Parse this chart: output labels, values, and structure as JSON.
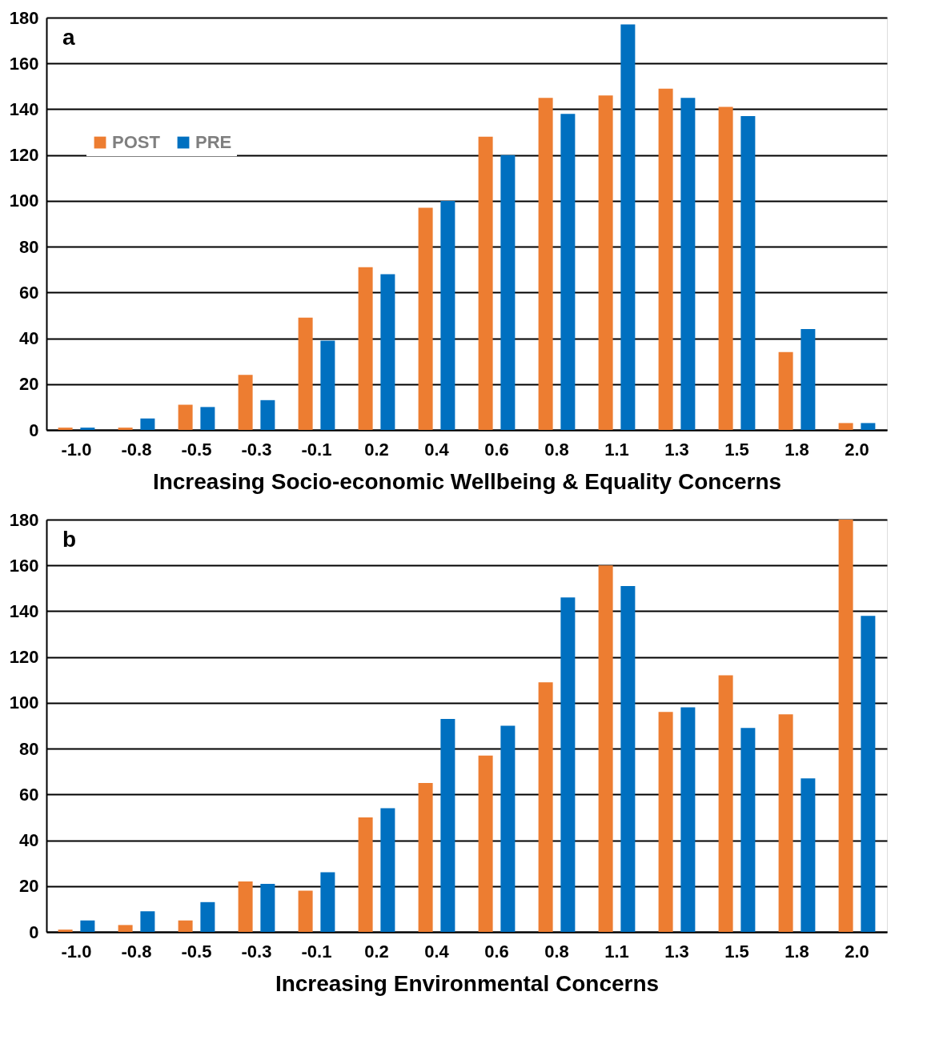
{
  "chart_data": [
    {
      "type": "bar",
      "xlabel": "Increasing Socio-economic Wellbeing & Equality Concerns",
      "annotations": [
        "a"
      ],
      "categories": [
        "-1.0",
        "-0.8",
        "-0.5",
        "-0.3",
        "-0.1",
        "0.2",
        "0.4",
        "0.6",
        "0.8",
        "1.1",
        "1.3",
        "1.5",
        "1.8",
        "2.0"
      ],
      "series": [
        {
          "name": "POST",
          "color": "#ed7d31",
          "values": [
            1,
            1,
            11,
            24,
            49,
            71,
            97,
            128,
            145,
            146,
            149,
            141,
            34,
            3
          ]
        },
        {
          "name": "PRE",
          "color": "#0070c0",
          "values": [
            1,
            5,
            10,
            13,
            39,
            68,
            100,
            120,
            138,
            177,
            145,
            137,
            44,
            3
          ]
        }
      ],
      "ylim": [
        0,
        180
      ],
      "yticks": [
        0,
        20,
        40,
        60,
        80,
        100,
        120,
        140,
        160,
        180
      ],
      "grid": "y",
      "legend": "left"
    },
    {
      "type": "bar",
      "xlabel": "Increasing Environmental Concerns",
      "annotations": [
        "b"
      ],
      "categories": [
        "-1.0",
        "-0.8",
        "-0.5",
        "-0.3",
        "-0.1",
        "0.2",
        "0.4",
        "0.6",
        "0.8",
        "1.1",
        "1.3",
        "1.5",
        "1.8",
        "2.0"
      ],
      "series": [
        {
          "name": "POST",
          "color": "#ed7d31",
          "values": [
            1,
            3,
            5,
            22,
            18,
            50,
            65,
            77,
            109,
            160,
            96,
            112,
            95,
            180
          ]
        },
        {
          "name": "PRE",
          "color": "#0070c0",
          "values": [
            5,
            9,
            13,
            21,
            26,
            54,
            93,
            90,
            146,
            151,
            98,
            89,
            67,
            138
          ]
        }
      ],
      "ylim": [
        0,
        180
      ],
      "yticks": [
        0,
        20,
        40,
        60,
        80,
        100,
        120,
        140,
        160,
        180
      ],
      "grid": "y",
      "legend": "left"
    }
  ]
}
